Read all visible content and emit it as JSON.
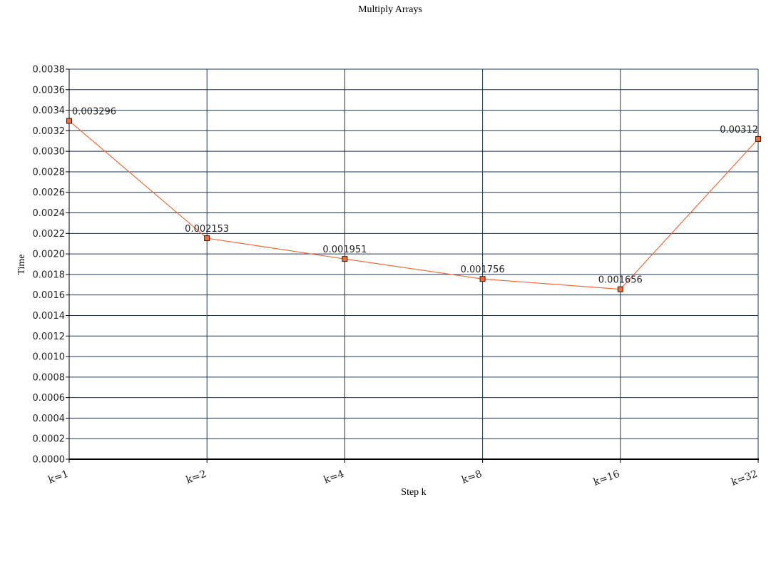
{
  "chart_data": {
    "type": "line",
    "title": "Multiply Arrays",
    "xlabel": "Step k",
    "ylabel": "Time",
    "categories": [
      "k=1",
      "k=2",
      "k=4",
      "k=8",
      "k=16",
      "k=32"
    ],
    "series": [
      {
        "values": [
          0.003296,
          0.002153,
          0.001951,
          0.001756,
          0.001656,
          0.00312
        ],
        "data_labels": [
          "0.003296",
          "0.002153",
          "0.001951",
          "0.001756",
          "0.001656",
          "0.00312"
        ]
      }
    ],
    "ylim": [
      0,
      0.0038
    ],
    "ytick_step": 0.0002,
    "ytick_labels": [
      "0.0000",
      "0.0002",
      "0.0004",
      "0.0006",
      "0.0008",
      "0.0010",
      "0.0012",
      "0.0014",
      "0.0016",
      "0.0018",
      "0.0020",
      "0.0022",
      "0.0024",
      "0.0026",
      "0.0028",
      "0.0030",
      "0.0032",
      "0.0034",
      "0.0036",
      "0.0038"
    ],
    "grid": true,
    "colors": {
      "line": "#f26b3a",
      "marker_fill": "#f26b3a",
      "marker_stroke": "#3a1a0a",
      "grid": "#1e3550",
      "axis": "#000000"
    }
  }
}
